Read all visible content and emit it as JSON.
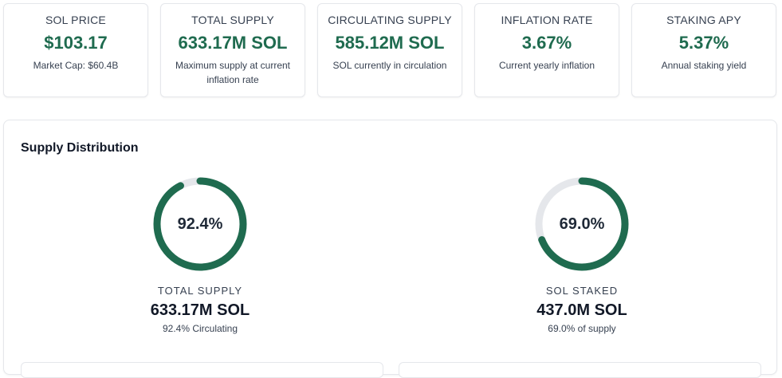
{
  "stats": [
    {
      "label": "SOL PRICE",
      "value": "$103.17",
      "sub": "Market Cap: $60.4B"
    },
    {
      "label": "TOTAL SUPPLY",
      "value": "633.17M SOL",
      "sub": "Maximum supply at current inflation rate"
    },
    {
      "label": "CIRCULATING SUPPLY",
      "value": "585.12M SOL",
      "sub": "SOL currently in circulation"
    },
    {
      "label": "INFLATION RATE",
      "value": "3.67%",
      "sub": "Current yearly inflation"
    },
    {
      "label": "STAKING APY",
      "value": "5.37%",
      "sub": "Annual staking yield"
    }
  ],
  "distribution": {
    "title": "Supply Distribution",
    "donuts": [
      {
        "percent_text": "92.4%",
        "percent": 92.4,
        "label": "TOTAL SUPPLY",
        "value": "633.17M SOL",
        "sub": "92.4% Circulating"
      },
      {
        "percent_text": "69.0%",
        "percent": 69.0,
        "label": "SOL STAKED",
        "value": "437.0M SOL",
        "sub": "69.0% of supply"
      }
    ]
  },
  "colors": {
    "accent": "#1f6b4f",
    "track": "#e5e7eb"
  }
}
